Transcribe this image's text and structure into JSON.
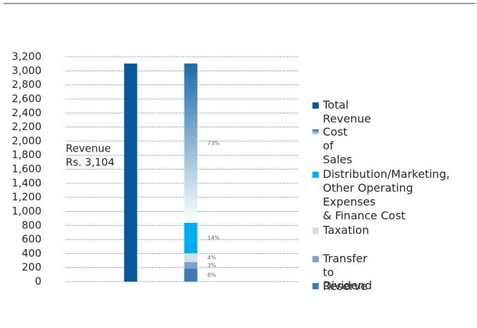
{
  "chart_data": {
    "type": "stacked_bar",
    "annotation": [
      "Revenue",
      "Rs. 3,104"
    ],
    "categories": [
      null,
      null
    ],
    "series": [
      {
        "name": "Total Revenue",
        "color": "#07589a",
        "values": [
          3104,
          null
        ]
      },
      {
        "name": "Cost of Sales",
        "color": "#1d6aa8",
        "gradient_to": "#ffffff",
        "values": [
          null,
          2266
        ],
        "value_labels": [
          null,
          "73%"
        ]
      },
      {
        "name": "Distribution/Marketing,\nOther Operating Expenses\n& Finance Cost",
        "color": "#00aeef",
        "values": [
          null,
          435
        ],
        "value_labels": [
          null,
          "14%"
        ]
      },
      {
        "name": "Taxation",
        "color": "#d2dfe5",
        "values": [
          null,
          124
        ],
        "value_labels": [
          null,
          "4%"
        ]
      },
      {
        "name": "Transfer to Reserve",
        "color": "#7f9fcb",
        "values": [
          null,
          93
        ],
        "value_labels": [
          null,
          "3%"
        ]
      },
      {
        "name": "Dividend",
        "color": "#3d7ab6",
        "values": [
          null,
          186
        ],
        "value_labels": [
          null,
          "6%"
        ]
      }
    ],
    "ylim": [
      0,
      3200
    ],
    "yticks": [
      0,
      200,
      400,
      600,
      800,
      {
        "value": 1000,
        "label": "1,000"
      },
      {
        "value": 1200,
        "label": "1,200"
      },
      {
        "value": 1400,
        "label": "1,400"
      },
      {
        "value": 1600,
        "label": "1,600"
      },
      {
        "value": 1800,
        "label": "1,800"
      },
      {
        "value": 2000,
        "label": "2,000"
      },
      {
        "value": 2200,
        "label": "2,200"
      },
      {
        "value": 2400,
        "label": "2,400"
      },
      {
        "value": 2600,
        "label": "2,600"
      },
      {
        "value": 2800,
        "label": "2,800"
      },
      {
        "value": 3000,
        "label": "3,000"
      },
      {
        "value": 3200,
        "label": "3,200"
      }
    ],
    "grid": true
  }
}
